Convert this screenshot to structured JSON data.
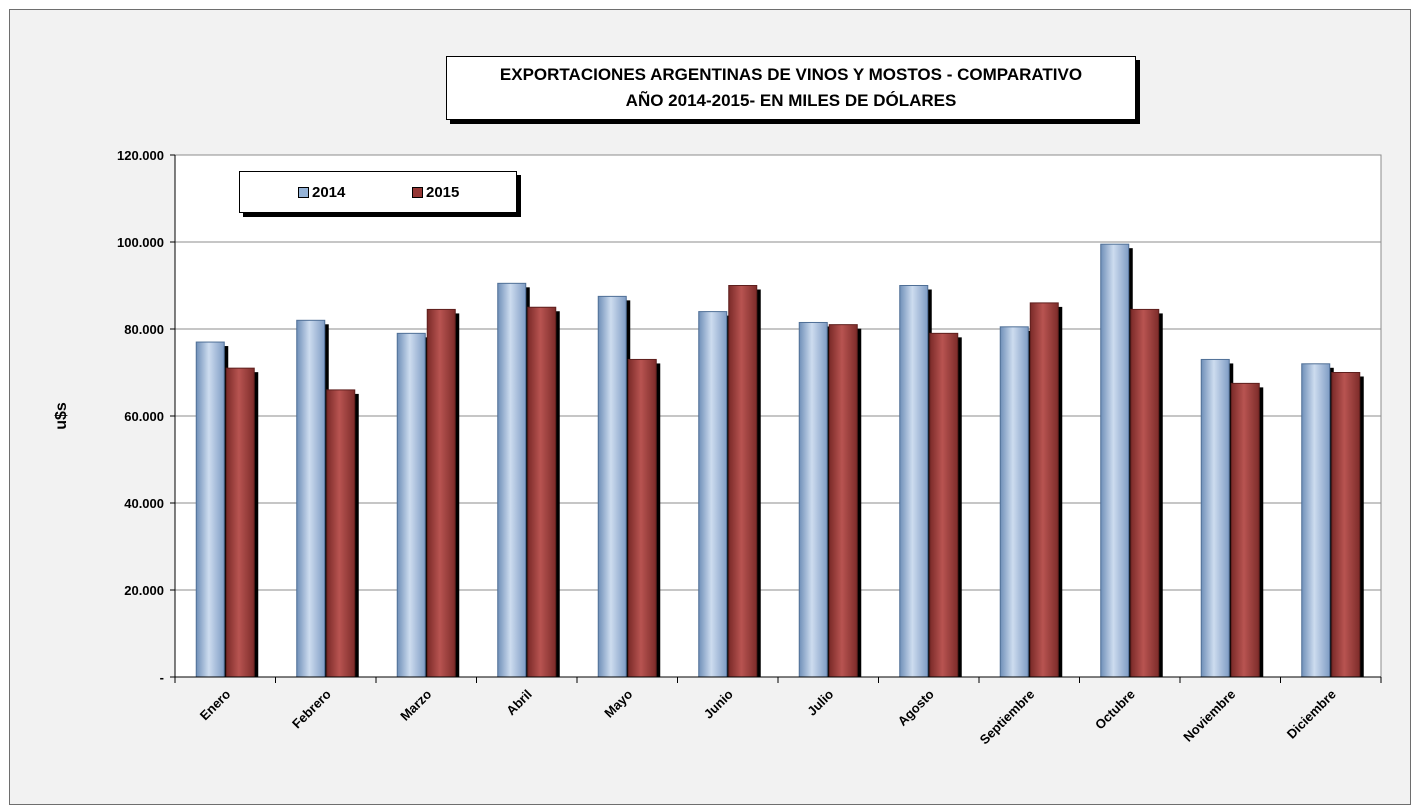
{
  "chart_data": {
    "type": "bar",
    "title": "EXPORTACIONES ARGENTINAS DE VINOS Y MOSTOS - COMPARATIVO",
    "subtitle": "AÑO 2014-2015- EN MILES DE DÓLARES",
    "xlabel": "",
    "ylabel": "u$s",
    "ylim": [
      0,
      120000
    ],
    "yticks": [
      {
        "value": 0,
        "label": "-"
      },
      {
        "value": 20000,
        "label": "20.000"
      },
      {
        "value": 40000,
        "label": "40.000"
      },
      {
        "value": 60000,
        "label": "60.000"
      },
      {
        "value": 80000,
        "label": "80.000"
      },
      {
        "value": 100000,
        "label": "100.000"
      },
      {
        "value": 120000,
        "label": "120.000"
      }
    ],
    "grid": true,
    "legend": "top-left",
    "categories": [
      "Enero",
      "Febrero",
      "Marzo",
      "Abril",
      "Mayo",
      "Junio",
      "Julio",
      "Agosto",
      "Septiembre",
      "Octubre",
      "Noviembre",
      "Diciembre"
    ],
    "series": [
      {
        "name": "2014",
        "color": "#95b3d7",
        "values": [
          77000,
          82000,
          79000,
          90500,
          87500,
          84000,
          81500,
          90000,
          80500,
          99500,
          73000,
          72000
        ]
      },
      {
        "name": "2015",
        "color": "#953735",
        "values": [
          71000,
          66000,
          84500,
          85000,
          73000,
          90000,
          81000,
          79000,
          86000,
          84500,
          67500,
          70000
        ]
      }
    ]
  }
}
